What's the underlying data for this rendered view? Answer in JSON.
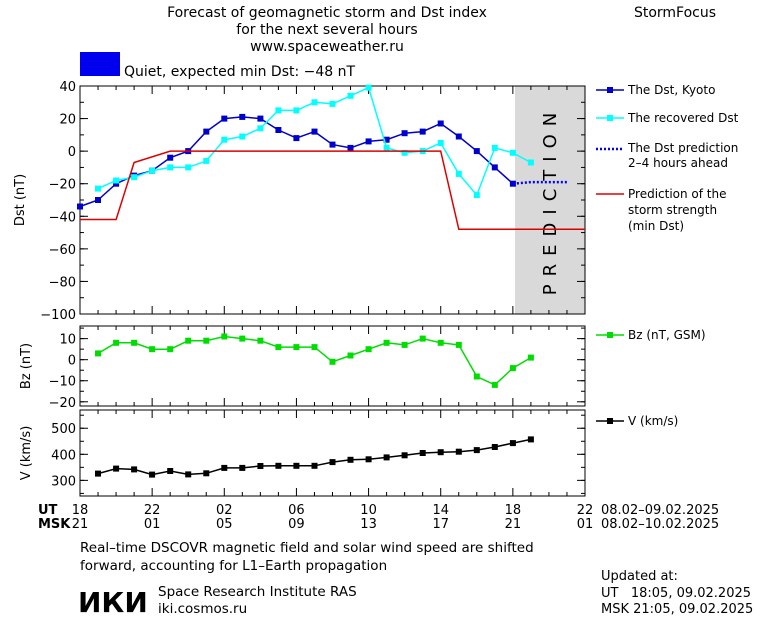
{
  "header": {
    "title_lines": [
      "Forecast of geomagnetic storm and Dst index",
      "for the next several hours",
      "www.spaceweather.ru"
    ],
    "brand": "StormFocus"
  },
  "status": {
    "label": "Quiet, expected min Dst: −48 nT",
    "color": "#0000ee"
  },
  "prediction_label": "PREDICTION",
  "chart_data": [
    {
      "type": "line",
      "ylabel": "Dst (nT)",
      "ylim": [
        -100,
        40
      ],
      "yticks": [
        40,
        20,
        0,
        -20,
        -40,
        -60,
        -80,
        -100
      ],
      "prediction_window_x": [
        18,
        21.8
      ],
      "series": [
        {
          "name": "The Dst, Kyoto",
          "color": "#0000cc",
          "marker": "square-filled",
          "x": [
            18,
            19,
            20,
            21,
            22,
            23,
            24,
            25,
            26,
            27,
            28,
            29,
            30,
            31,
            32,
            33,
            34,
            35,
            36,
            37,
            38,
            39,
            40,
            41,
            42
          ],
          "y": [
            -34,
            -30,
            -20,
            -15,
            -12,
            -4,
            0,
            12,
            20,
            21,
            20,
            13,
            8,
            12,
            4,
            2,
            6,
            7,
            11,
            12,
            17,
            9,
            0,
            -10,
            -20
          ]
        },
        {
          "name": "The recovered Dst",
          "color": "#00ffff",
          "marker": "square-open",
          "x": [
            19,
            20,
            21,
            22,
            23,
            24,
            25,
            26,
            27,
            28,
            29,
            30,
            31,
            32,
            33,
            34,
            35,
            36,
            37,
            38,
            39,
            40,
            41,
            42,
            43
          ],
          "y": [
            -23,
            -18,
            -16,
            -12,
            -10,
            -10,
            -6,
            7,
            9,
            14,
            25,
            25,
            30,
            29,
            34,
            39,
            2,
            -1,
            0,
            5,
            -14,
            -27,
            2,
            -1,
            -7
          ]
        },
        {
          "name": "The Dst prediction 2–4 hours ahead",
          "color": "#0000ff",
          "style": "dotted",
          "x": [
            42,
            43,
            44,
            45
          ],
          "y": [
            -20,
            -19,
            -19,
            -19
          ]
        },
        {
          "name": "Prediction of the storm strength (min Dst)",
          "color": "#dd0000",
          "style": "solid",
          "x": [
            18,
            20,
            21,
            23,
            24,
            25,
            26,
            27,
            28,
            29,
            30,
            31,
            32,
            33,
            34,
            35,
            36,
            37,
            38,
            39,
            40,
            41,
            42,
            43,
            44,
            45,
            46
          ],
          "y": [
            -42,
            -42,
            -7,
            0,
            0,
            0,
            0,
            0,
            0,
            0,
            0,
            0,
            0,
            0,
            0,
            0,
            0,
            0,
            0,
            -48,
            -48,
            -48,
            -48,
            -48,
            -48,
            -48,
            -48
          ]
        }
      ]
    },
    {
      "type": "line",
      "ylabel": "Bz (nT)",
      "ylim": [
        -22,
        16
      ],
      "yticks": [
        10,
        0,
        -10,
        -20
      ],
      "series": [
        {
          "name": "Bz (nT, GSM)",
          "color": "#00dd00",
          "marker": "square-open",
          "x": [
            19,
            20,
            21,
            22,
            23,
            24,
            25,
            26,
            27,
            28,
            29,
            30,
            31,
            32,
            33,
            34,
            35,
            36,
            37,
            38,
            39,
            40,
            41,
            42,
            43
          ],
          "y": [
            3,
            8,
            8,
            5,
            5,
            9,
            9,
            11,
            10,
            9,
            6,
            6,
            6,
            -1,
            2,
            5,
            8,
            7,
            10,
            8,
            7,
            -8,
            -12,
            -4,
            1
          ]
        }
      ]
    },
    {
      "type": "line",
      "ylabel": "V (km/s)",
      "ylim": [
        240,
        570
      ],
      "yticks": [
        500,
        400,
        300
      ],
      "series": [
        {
          "name": "V (km/s)",
          "color": "#000000",
          "marker": "square-filled",
          "x": [
            19,
            20,
            21,
            22,
            23,
            24,
            25,
            26,
            27,
            28,
            29,
            30,
            31,
            32,
            33,
            34,
            35,
            36,
            37,
            38,
            39,
            40,
            41,
            42,
            43
          ],
          "y": [
            326,
            345,
            342,
            322,
            336,
            323,
            327,
            348,
            348,
            355,
            356,
            356,
            356,
            370,
            379,
            381,
            388,
            396,
            405,
            408,
            410,
            416,
            428,
            443,
            457
          ]
        }
      ]
    }
  ],
  "x_axis": {
    "ut_label": "UT",
    "msk_label": "MSK",
    "ut_ticks": [
      "18",
      "22",
      "02",
      "06",
      "10",
      "14",
      "18",
      "22"
    ],
    "msk_ticks": [
      "21",
      "01",
      "05",
      "09",
      "13",
      "17",
      "21",
      "01"
    ],
    "ut_range": "08.02–09.02.2025",
    "msk_range": "08.02–10.02.2025"
  },
  "footer": {
    "note_lines": [
      "Real–time DSCOVR magnetic field and solar wind speed are shifted",
      "forward, accounting for L1–Earth propagation"
    ],
    "logo": "ИКИ",
    "institute": "Space Research Institute RAS",
    "site": "iki.cosmos.ru",
    "updated_label": "Updated at:",
    "updated_ut": "UT   18:05, 09.02.2025",
    "updated_msk": "MSK 21:05, 09.02.2025"
  }
}
